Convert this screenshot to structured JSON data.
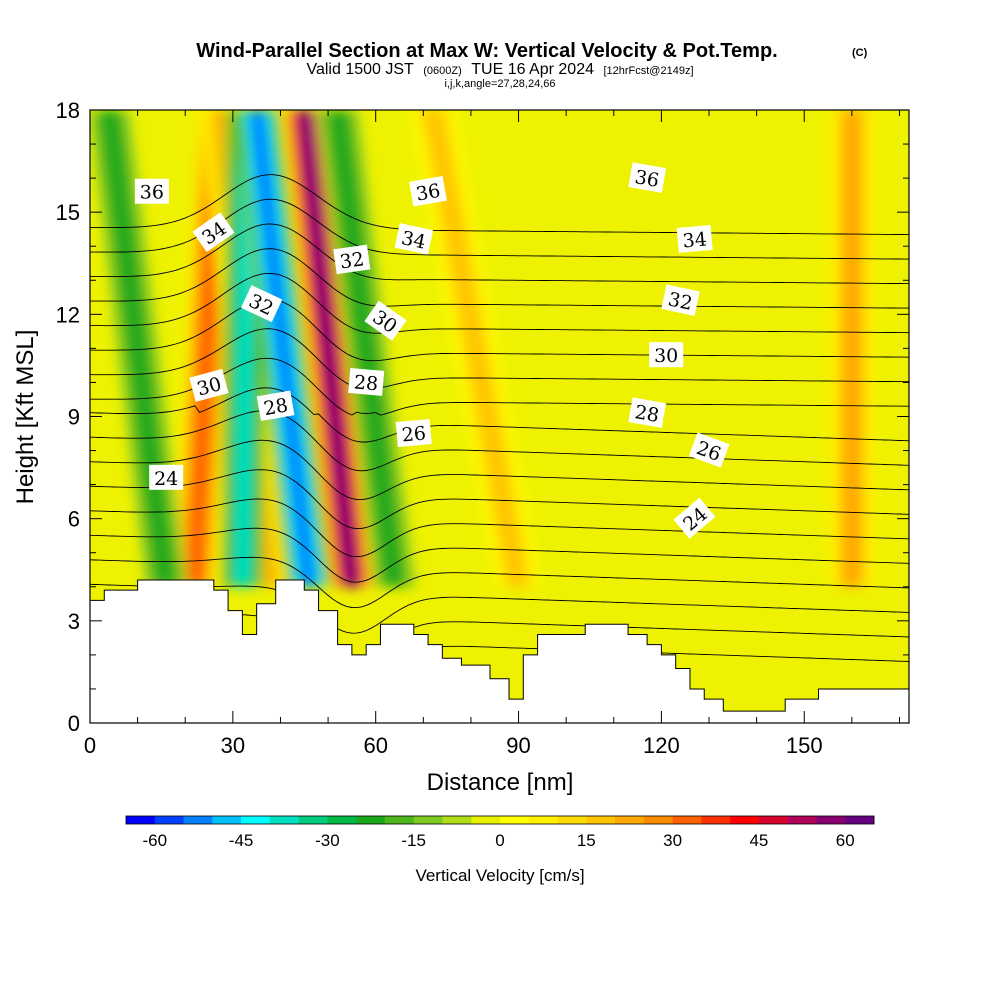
{
  "chart_data": {
    "type": "heatmap",
    "title": "Wind-Parallel Section at Max W: Vertical Velocity & Pot.Temp.",
    "title_mark": "(C)",
    "subtitle_main": "Valid 1500 JST",
    "subtitle_utc": "(0600Z)",
    "subtitle_date": "TUE 16 Apr 2024",
    "subtitle_fcst": "[12hrFcst@2149z]",
    "subtitle2": "i,j,k,angle=27,28,24,66",
    "xlabel": "Distance [nm]",
    "ylabel": "Height [Kft MSL]",
    "xlim": [
      0,
      172
    ],
    "ylim": [
      0,
      18
    ],
    "x_ticks": [
      "0",
      "30",
      "60",
      "90",
      "120",
      "150"
    ],
    "y_ticks": [
      "0",
      "3",
      "6",
      "9",
      "12",
      "15",
      "18"
    ],
    "colorbar": {
      "label": "Vertical Velocity [cm/s]",
      "range": [
        -65,
        65
      ],
      "tick_labels": [
        "-60",
        "-45",
        "-30",
        "-15",
        "0",
        "15",
        "30",
        "45",
        "60"
      ],
      "colors": [
        "#0000ff",
        "#0040ff",
        "#0080ff",
        "#00c0ff",
        "#00ffff",
        "#00e0c0",
        "#00cc80",
        "#00b844",
        "#1ca81c",
        "#4cb61c",
        "#7ec822",
        "#b0dc1a",
        "#e6f000",
        "#ffff00",
        "#fff000",
        "#ffdc00",
        "#ffc400",
        "#ffa800",
        "#ff8c00",
        "#ff6000",
        "#ff3000",
        "#ff0000",
        "#d8002c",
        "#b0005a",
        "#880070",
        "#660080"
      ]
    },
    "updraft_bands": [
      {
        "name": "",
        "x_bottom": 22,
        "x_top": 27,
        "peak_cm_s": 30
      },
      {
        "name": "",
        "x_bottom": 37,
        "x_top": 28,
        "peak_cm_s": 20
      },
      {
        "name": "",
        "x_bottom": 55,
        "x_top": 45,
        "peak_cm_s": 55
      },
      {
        "name": "",
        "x_bottom": 90,
        "x_top": 72,
        "peak_cm_s": 15
      },
      {
        "name": "",
        "x_bottom": 160,
        "x_top": 160,
        "peak_cm_s": 20
      }
    ],
    "downdraft_bands": [
      {
        "x_bottom": 32,
        "x_top": 33,
        "peak_cm_s": -40
      },
      {
        "x_bottom": 46,
        "x_top": 35,
        "peak_cm_s": -55
      },
      {
        "x_bottom": 16,
        "x_top": 4,
        "peak_cm_s": -25
      },
      {
        "x_bottom": 64,
        "x_top": 52,
        "peak_cm_s": -25
      }
    ],
    "contour_interval_k": 1,
    "contour_labels": [
      {
        "text": "36",
        "x": 13,
        "y": 15.6,
        "angle": 0
      },
      {
        "text": "36",
        "x": 71,
        "y": 15.6,
        "angle": -10
      },
      {
        "text": "36",
        "x": 117,
        "y": 16.0,
        "angle": 10
      },
      {
        "text": "34",
        "x": 26,
        "y": 14.4,
        "angle": -35
      },
      {
        "text": "34",
        "x": 68,
        "y": 14.2,
        "angle": 12
      },
      {
        "text": "34",
        "x": 127,
        "y": 14.2,
        "angle": -5
      },
      {
        "text": "32",
        "x": 36,
        "y": 12.3,
        "angle": 25
      },
      {
        "text": "32",
        "x": 55,
        "y": 13.6,
        "angle": -8
      },
      {
        "text": "32",
        "x": 124,
        "y": 12.4,
        "angle": 12
      },
      {
        "text": "30",
        "x": 25,
        "y": 9.9,
        "angle": -15
      },
      {
        "text": "30",
        "x": 62,
        "y": 11.8,
        "angle": 35
      },
      {
        "text": "30",
        "x": 121,
        "y": 10.8,
        "angle": 0
      },
      {
        "text": "28",
        "x": 39,
        "y": 9.3,
        "angle": -10
      },
      {
        "text": "28",
        "x": 58,
        "y": 10.0,
        "angle": 5
      },
      {
        "text": "28",
        "x": 117,
        "y": 9.1,
        "angle": 10
      },
      {
        "text": "26",
        "x": 68,
        "y": 8.5,
        "angle": -5
      },
      {
        "text": "26",
        "x": 130,
        "y": 8.0,
        "angle": 20
      },
      {
        "text": "24",
        "x": 16,
        "y": 7.2,
        "angle": 0
      },
      {
        "text": "24",
        "x": 127,
        "y": 6.0,
        "angle": -40
      }
    ],
    "terrain_kft": [
      [
        0,
        3.6
      ],
      [
        3,
        3.6
      ],
      [
        3,
        3.9
      ],
      [
        10,
        3.9
      ],
      [
        10,
        4.2
      ],
      [
        26,
        4.2
      ],
      [
        26,
        3.9
      ],
      [
        29,
        3.9
      ],
      [
        29,
        3.3
      ],
      [
        32,
        3.3
      ],
      [
        32,
        2.6
      ],
      [
        35,
        2.6
      ],
      [
        35,
        3.5
      ],
      [
        39,
        3.5
      ],
      [
        39,
        4.2
      ],
      [
        45,
        4.2
      ],
      [
        45,
        3.9
      ],
      [
        48,
        3.9
      ],
      [
        48,
        3.3
      ],
      [
        52,
        3.3
      ],
      [
        52,
        2.3
      ],
      [
        55,
        2.3
      ],
      [
        55,
        2.0
      ],
      [
        58,
        2.0
      ],
      [
        58,
        2.3
      ],
      [
        61,
        2.3
      ],
      [
        61,
        2.9
      ],
      [
        68,
        2.9
      ],
      [
        68,
        2.6
      ],
      [
        71,
        2.6
      ],
      [
        71,
        2.3
      ],
      [
        74,
        2.3
      ],
      [
        74,
        1.9
      ],
      [
        78,
        1.9
      ],
      [
        78,
        1.7
      ],
      [
        84,
        1.7
      ],
      [
        84,
        1.3
      ],
      [
        88,
        1.3
      ],
      [
        88,
        0.7
      ],
      [
        91,
        0.7
      ],
      [
        91,
        2.0
      ],
      [
        94,
        2.0
      ],
      [
        94,
        2.6
      ],
      [
        104,
        2.6
      ],
      [
        104,
        2.9
      ],
      [
        113,
        2.9
      ],
      [
        113,
        2.6
      ],
      [
        117,
        2.6
      ],
      [
        117,
        2.3
      ],
      [
        120,
        2.3
      ],
      [
        120,
        2.0
      ],
      [
        123,
        2.0
      ],
      [
        123,
        1.6
      ],
      [
        126,
        1.6
      ],
      [
        126,
        1.0
      ],
      [
        129,
        1.0
      ],
      [
        129,
        0.7
      ],
      [
        133,
        0.7
      ],
      [
        133,
        0.35
      ],
      [
        146,
        0.35
      ],
      [
        146,
        0.7
      ],
      [
        153,
        0.7
      ],
      [
        153,
        1.0
      ],
      [
        172,
        1.0
      ]
    ],
    "grid": false
  }
}
